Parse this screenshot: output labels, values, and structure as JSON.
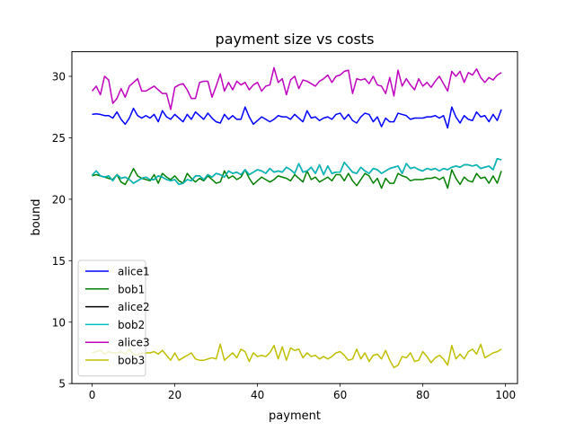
{
  "chart_data": {
    "type": "line",
    "title": "payment size vs costs",
    "xlabel": "payment",
    "ylabel": "bound",
    "xlim": [
      -4.9,
      102.9
    ],
    "ylim": [
      5,
      32
    ],
    "xticks": [
      0,
      20,
      40,
      60,
      80,
      100
    ],
    "yticks": [
      5,
      10,
      15,
      20,
      25,
      30
    ],
    "grid": false,
    "legend_position": "lower-left",
    "x_start": 0,
    "x_step": 1,
    "series": [
      {
        "name": "alice1",
        "color": "#0000ff",
        "values": [
          26.9,
          26.95,
          26.9,
          26.8,
          26.8,
          26.6,
          27.1,
          26.5,
          26.1,
          26.6,
          27.4,
          26.8,
          26.6,
          26.8,
          26.6,
          26.9,
          26.3,
          27.2,
          26.7,
          26.5,
          26.9,
          26.6,
          26.3,
          26.9,
          26.5,
          27.1,
          26.8,
          26.5,
          27.0,
          26.6,
          26.3,
          26.2,
          26.9,
          26.5,
          26.8,
          26.5,
          26.5,
          27.5,
          26.7,
          26.1,
          26.4,
          26.7,
          26.5,
          26.3,
          26.5,
          26.8,
          26.7,
          26.7,
          26.5,
          26.9,
          26.6,
          26.3,
          27.2,
          26.6,
          26.7,
          26.4,
          26.6,
          26.7,
          26.5,
          26.9,
          27.0,
          26.5,
          26.9,
          26.4,
          26.2,
          26.7,
          27.0,
          26.9,
          26.3,
          26.7,
          25.9,
          26.6,
          26.3,
          26.3,
          27.0,
          26.9,
          26.8,
          26.5,
          26.6,
          26.6,
          26.6,
          26.7,
          26.7,
          26.8,
          26.6,
          26.8,
          25.8,
          27.5,
          26.7,
          26.2,
          26.8,
          26.5,
          26.4,
          27.1,
          26.7,
          26.8,
          26.3,
          26.9,
          26.4,
          27.3
        ]
      },
      {
        "name": "bob1",
        "color": "#008000",
        "values": [
          21.9,
          22.0,
          21.9,
          21.8,
          21.7,
          21.6,
          22.0,
          21.4,
          21.2,
          21.8,
          22.5,
          21.9,
          21.7,
          21.6,
          21.5,
          22.0,
          21.3,
          22.1,
          21.8,
          21.6,
          21.9,
          21.5,
          21.3,
          22.1,
          21.7,
          21.4,
          21.7,
          21.5,
          21.9,
          21.6,
          21.3,
          21.4,
          22.3,
          21.7,
          21.9,
          21.6,
          21.8,
          22.4,
          21.7,
          21.2,
          21.5,
          21.8,
          21.6,
          21.4,
          21.6,
          21.9,
          21.8,
          21.7,
          21.5,
          22.0,
          21.7,
          21.4,
          22.3,
          21.6,
          21.8,
          21.4,
          21.6,
          21.8,
          21.5,
          22.0,
          22.0,
          21.5,
          22.1,
          21.5,
          21.1,
          21.6,
          22.1,
          21.9,
          21.3,
          21.7,
          20.9,
          21.7,
          21.3,
          21.3,
          22.1,
          21.9,
          21.8,
          21.5,
          21.6,
          21.6,
          21.6,
          21.7,
          21.7,
          21.8,
          21.6,
          21.8,
          20.9,
          22.4,
          21.7,
          21.2,
          21.8,
          21.5,
          21.4,
          22.1,
          21.7,
          21.8,
          21.3,
          21.9,
          21.3,
          22.3
        ]
      },
      {
        "name": "alice2",
        "color": "#000000",
        "values": [
          21.95,
          22.3,
          21.9,
          21.8,
          21.9,
          21.5,
          22.0,
          21.7,
          21.8,
          21.6,
          21.3,
          21.5,
          21.7,
          21.8,
          21.6,
          21.6,
          21.9,
          21.8,
          21.6,
          21.5,
          21.6,
          21.2,
          21.3,
          21.6,
          21.5,
          21.9,
          21.9,
          21.6,
          22.0,
          21.8,
          22.1,
          22.0,
          21.8,
          22.3,
          22.1,
          22.2,
          22.0,
          22.4,
          22.0,
          22.2,
          22.4,
          22.3,
          22.1,
          22.5,
          22.2,
          22.3,
          22.2,
          22.6,
          22.4,
          22.1,
          22.9,
          22.2,
          22.3,
          22.6,
          22.1,
          22.8,
          22.0,
          22.7,
          22.1,
          22.2,
          22.2,
          23.0,
          22.6,
          22.2,
          22.1,
          22.6,
          22.3,
          22.1,
          22.5,
          22.4,
          22.1,
          22.3,
          22.5,
          22.6,
          22.7,
          22.1,
          22.9,
          22.5,
          22.6,
          22.4,
          22.3,
          22.5,
          22.4,
          22.5,
          22.3,
          22.5,
          22.4,
          22.6,
          22.7,
          22.6,
          22.8,
          22.8,
          22.7,
          22.8,
          22.5,
          22.6,
          22.7,
          22.4,
          23.3,
          23.2
        ]
      },
      {
        "name": "bob2",
        "color": "#00bfbf",
        "values": [
          21.95,
          22.3,
          21.9,
          21.8,
          21.9,
          21.5,
          22.0,
          21.7,
          21.8,
          21.6,
          21.3,
          21.5,
          21.7,
          21.8,
          21.6,
          21.6,
          21.9,
          21.8,
          21.6,
          21.5,
          21.6,
          21.2,
          21.3,
          21.6,
          21.5,
          21.9,
          21.9,
          21.6,
          22.0,
          21.8,
          22.1,
          22.0,
          21.8,
          22.3,
          22.1,
          22.2,
          22.0,
          22.4,
          22.0,
          22.2,
          22.4,
          22.3,
          22.1,
          22.5,
          22.2,
          22.3,
          22.2,
          22.6,
          22.4,
          22.1,
          22.9,
          22.2,
          22.3,
          22.6,
          22.1,
          22.8,
          22.0,
          22.7,
          22.1,
          22.2,
          22.2,
          23.0,
          22.6,
          22.2,
          22.1,
          22.6,
          22.3,
          22.1,
          22.5,
          22.4,
          22.1,
          22.3,
          22.5,
          22.6,
          22.7,
          22.1,
          22.9,
          22.5,
          22.6,
          22.4,
          22.3,
          22.5,
          22.4,
          22.5,
          22.3,
          22.5,
          22.4,
          22.6,
          22.7,
          22.6,
          22.8,
          22.8,
          22.7,
          22.8,
          22.5,
          22.6,
          22.7,
          22.4,
          23.3,
          23.2
        ]
      },
      {
        "name": "alice3",
        "color": "#bf00bf",
        "values": [
          28.8,
          29.2,
          28.5,
          30.0,
          29.7,
          27.8,
          28.2,
          29.0,
          28.3,
          29.2,
          29.5,
          29.8,
          28.8,
          28.8,
          29.0,
          29.2,
          28.9,
          28.6,
          28.6,
          27.3,
          29.1,
          29.3,
          29.4,
          28.9,
          28.2,
          28.2,
          29.5,
          29.6,
          29.6,
          28.3,
          29.2,
          30.2,
          28.8,
          29.5,
          28.9,
          29.6,
          29.3,
          29.5,
          28.9,
          29.3,
          29.5,
          28.8,
          29.2,
          29.3,
          30.7,
          29.5,
          29.8,
          28.5,
          29.7,
          30.0,
          29.0,
          29.7,
          29.6,
          29.4,
          29.2,
          29.6,
          29.8,
          30.1,
          29.5,
          30.0,
          30.1,
          30.4,
          30.5,
          28.6,
          29.8,
          29.7,
          29.8,
          29.4,
          30.0,
          29.3,
          29.2,
          28.6,
          29.9,
          28.4,
          30.5,
          29.2,
          29.8,
          29.3,
          28.9,
          29.8,
          29.2,
          29.5,
          29.1,
          29.6,
          30.0,
          29.4,
          28.8,
          30.4,
          30.0,
          30.4,
          29.5,
          30.3,
          30.1,
          30.6,
          29.9,
          29.5,
          29.9,
          29.7,
          30.1,
          30.3
        ]
      },
      {
        "name": "bob3",
        "color": "#bfbf00",
        "values": [
          7.5,
          7.6,
          7.7,
          7.4,
          7.6,
          7.5,
          7.5,
          7.6,
          7.4,
          7.8,
          7.4,
          7.3,
          7.5,
          7.5,
          7.5,
          7.6,
          7.4,
          7.7,
          7.3,
          6.9,
          7.5,
          6.9,
          7.1,
          7.3,
          7.5,
          7.0,
          6.9,
          6.9,
          7.0,
          7.1,
          7.0,
          8.2,
          6.9,
          7.2,
          7.5,
          7.1,
          7.8,
          7.6,
          6.8,
          7.5,
          7.2,
          7.3,
          7.2,
          7.5,
          8.1,
          7.0,
          8.0,
          6.9,
          7.9,
          7.7,
          7.8,
          7.1,
          7.5,
          7.2,
          7.3,
          7.0,
          7.2,
          7.0,
          7.2,
          7.5,
          7.6,
          7.3,
          6.9,
          7.0,
          7.8,
          7.0,
          7.5,
          6.8,
          7.3,
          7.4,
          7.0,
          7.7,
          6.9,
          6.3,
          6.5,
          7.2,
          7.1,
          7.5,
          6.8,
          6.9,
          7.6,
          7.2,
          6.7,
          7.1,
          7.3,
          7.0,
          6.5,
          8.1,
          7.0,
          7.4,
          7.0,
          7.6,
          7.8,
          7.4,
          8.2,
          7.1,
          7.3,
          7.5,
          7.6,
          7.8
        ]
      }
    ]
  }
}
